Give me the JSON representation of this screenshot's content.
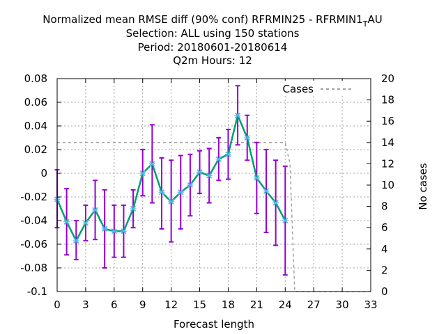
{
  "chart_data": {
    "type": "line",
    "title_lines": [
      "Normalized mean RMSE diff (90% conf) RFRMIN25 - RFRMIN1",
      "Selection: ALL using   150 stations",
      "Period: 20180601-20180614",
      "Q2m   Hours:  12"
    ],
    "title_tail_sub": "T",
    "title_tail_rest": "AU",
    "xlabel": "Forecast length",
    "ylabel_right": "No cases",
    "xlim": [
      0,
      33
    ],
    "ylim": [
      -0.1,
      0.08
    ],
    "y2lim": [
      0,
      20
    ],
    "xticks": [
      "0",
      "3",
      "6",
      "9",
      "12",
      "15",
      "18",
      "21",
      "24",
      "27",
      "30",
      "33"
    ],
    "yticks": [
      "-0.1",
      "-0.08",
      "-0.06",
      "-0.04",
      "-0.02",
      "0",
      "0.02",
      "0.04",
      "0.06",
      "0.08"
    ],
    "y2ticks": [
      "0",
      "2",
      "4",
      "6",
      "8",
      "10",
      "12",
      "14",
      "16",
      "18",
      "20"
    ],
    "grid": true,
    "legend_position": "top-right",
    "legend_label": "Cases",
    "series_color": "#009e73",
    "marker_color": "#56b4e9",
    "errorbar_color": "#9400d3",
    "cases_color": "#a0a0a0",
    "series": [
      {
        "x": [
          0,
          1,
          2,
          3,
          4,
          5,
          6,
          7,
          8,
          9,
          10,
          11,
          12,
          13,
          14,
          15,
          16,
          17,
          18,
          19,
          20,
          21,
          22,
          23,
          24
        ],
        "y": [
          -0.022,
          -0.041,
          -0.057,
          -0.042,
          -0.031,
          -0.047,
          -0.049,
          -0.049,
          -0.03,
          0.0,
          0.008,
          -0.016,
          -0.024,
          -0.016,
          -0.01,
          0.001,
          -0.002,
          0.012,
          0.016,
          0.049,
          0.03,
          -0.004,
          -0.015,
          -0.025,
          -0.04
        ],
        "y_low": [
          -0.046,
          -0.069,
          -0.073,
          -0.057,
          -0.056,
          -0.08,
          -0.071,
          -0.071,
          -0.046,
          -0.019,
          -0.025,
          -0.047,
          -0.058,
          -0.047,
          -0.036,
          -0.017,
          -0.025,
          -0.006,
          -0.005,
          0.024,
          0.011,
          -0.034,
          -0.05,
          -0.061,
          -0.086
        ],
        "y_high": [
          0.003,
          -0.013,
          -0.04,
          -0.027,
          -0.006,
          -0.014,
          -0.027,
          -0.027,
          -0.014,
          0.02,
          0.041,
          0.013,
          0.011,
          0.015,
          0.016,
          0.019,
          0.021,
          0.03,
          0.037,
          0.074,
          0.049,
          0.026,
          0.02,
          0.011,
          0.006
        ]
      },
      {
        "name": "Cases",
        "x": [
          0,
          24,
          24.5,
          25,
          33
        ],
        "y": [
          14,
          14,
          12,
          0,
          0
        ]
      }
    ]
  }
}
